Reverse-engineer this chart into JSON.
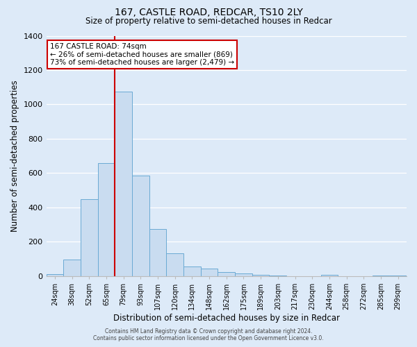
{
  "title": "167, CASTLE ROAD, REDCAR, TS10 2LY",
  "subtitle": "Size of property relative to semi-detached houses in Redcar",
  "xlabel": "Distribution of semi-detached houses by size in Redcar",
  "ylabel": "Number of semi-detached properties",
  "bar_color": "#c9dcf0",
  "bar_edge_color": "#6aaad4",
  "background_color": "#ddeaf8",
  "axes_background": "#ddeaf8",
  "categories": [
    "24sqm",
    "38sqm",
    "52sqm",
    "65sqm",
    "79sqm",
    "93sqm",
    "107sqm",
    "120sqm",
    "134sqm",
    "148sqm",
    "162sqm",
    "175sqm",
    "189sqm",
    "203sqm",
    "217sqm",
    "230sqm",
    "244sqm",
    "258sqm",
    "272sqm",
    "285sqm",
    "299sqm"
  ],
  "values": [
    10,
    95,
    450,
    660,
    1075,
    585,
    275,
    135,
    55,
    45,
    25,
    15,
    8,
    5,
    0,
    0,
    8,
    0,
    0,
    5,
    2
  ],
  "ylim": [
    0,
    1400
  ],
  "yticks": [
    0,
    200,
    400,
    600,
    800,
    1000,
    1200,
    1400
  ],
  "property_line_x": 4,
  "annotation_title": "167 CASTLE ROAD: 74sqm",
  "annotation_line1": "← 26% of semi-detached houses are smaller (869)",
  "annotation_line2": "73% of semi-detached houses are larger (2,479) →",
  "annotation_box_color": "#ffffff",
  "annotation_box_edge": "#cc0000",
  "vline_color": "#cc0000",
  "footer_line1": "Contains HM Land Registry data © Crown copyright and database right 2024.",
  "footer_line2": "Contains public sector information licensed under the Open Government Licence v3.0."
}
